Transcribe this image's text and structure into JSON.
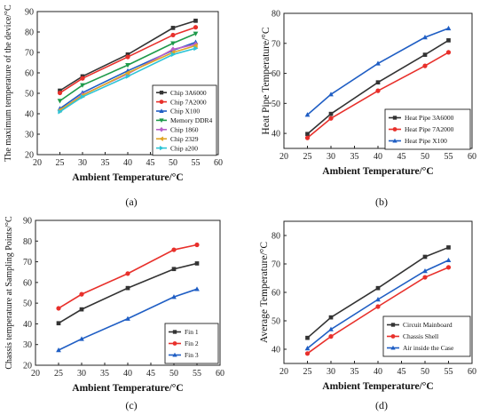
{
  "chart_data": [
    {
      "type": "line",
      "panel_label": "(a)",
      "xlabel": "Ambient Temperature/°C",
      "ylabel": "The maximum temperature of the device/°C",
      "xlim": [
        20,
        60
      ],
      "ylim": [
        20,
        90
      ],
      "xticks": [
        20,
        25,
        30,
        35,
        40,
        45,
        50,
        55,
        60
      ],
      "yticks": [
        20,
        30,
        40,
        50,
        60,
        70,
        80,
        90
      ],
      "grid": false,
      "legend_position": "bottom-right",
      "x": [
        25,
        30,
        40,
        50,
        55
      ],
      "series": [
        {
          "name": "Chip 3A6000",
          "color": "#333333",
          "marker": "square",
          "values": [
            51.3,
            58.3,
            69.0,
            82.0,
            85.5
          ]
        },
        {
          "name": "Chip 7A2000",
          "color": "#e8302b",
          "marker": "circle",
          "values": [
            50.2,
            57.3,
            67.8,
            78.5,
            82.3
          ]
        },
        {
          "name": "Chip X100",
          "color": "#1f5ec4",
          "marker": "triangle-up",
          "values": [
            42.5,
            50.3,
            61.0,
            71.0,
            75.0
          ]
        },
        {
          "name": "Memory DDR4",
          "color": "#1e9a4a",
          "marker": "triangle-down",
          "values": [
            46.3,
            54.0,
            63.8,
            74.5,
            79.2
          ]
        },
        {
          "name": "Chip 1860",
          "color": "#b860c8",
          "marker": "diamond",
          "values": [
            41.5,
            49.3,
            59.5,
            71.5,
            74.0
          ]
        },
        {
          "name": "Chip 2329",
          "color": "#e0a526",
          "marker": "triangle-left",
          "values": [
            41.8,
            49.0,
            60.0,
            70.0,
            73.3
          ]
        },
        {
          "name": "Chip a200",
          "color": "#2ec4d6",
          "marker": "triangle-right",
          "values": [
            41.0,
            48.3,
            58.3,
            69.0,
            72.0
          ]
        }
      ]
    },
    {
      "type": "line",
      "panel_label": "(b)",
      "xlabel": "Ambient Temperature/°C",
      "ylabel": "Heat Pipe Temperature/°C",
      "xlim": [
        20,
        60
      ],
      "ylim": [
        35,
        80
      ],
      "xticks": [
        20,
        25,
        30,
        35,
        40,
        45,
        50,
        55,
        60
      ],
      "yticks": [
        40,
        50,
        60,
        70,
        80
      ],
      "grid": false,
      "legend_position": "bottom-right",
      "x": [
        25,
        30,
        40,
        50,
        55
      ],
      "series": [
        {
          "name": "Heat Pipe 3A6000",
          "color": "#333333",
          "marker": "square",
          "values": [
            39.8,
            46.5,
            57.0,
            66.2,
            71.0
          ]
        },
        {
          "name": "Heat Pipe 7A2000",
          "color": "#e8302b",
          "marker": "circle",
          "values": [
            38.5,
            45.0,
            54.2,
            62.5,
            67.0
          ]
        },
        {
          "name": "Heat Pipe X100",
          "color": "#1f5ec4",
          "marker": "triangle-up",
          "values": [
            46.2,
            53.0,
            63.3,
            72.0,
            75.0
          ]
        }
      ]
    },
    {
      "type": "line",
      "panel_label": "(c)",
      "xlabel": "Ambient Temperature/°C",
      "ylabel": "Chassis temperature at Sampling Points/°C",
      "xlim": [
        20,
        60
      ],
      "ylim": [
        20,
        90
      ],
      "xticks": [
        20,
        25,
        30,
        35,
        40,
        45,
        50,
        55,
        60
      ],
      "yticks": [
        20,
        30,
        40,
        50,
        60,
        70,
        80,
        90
      ],
      "grid": false,
      "legend_position": "bottom-right",
      "x": [
        25,
        30,
        40,
        50,
        55
      ],
      "series": [
        {
          "name": "Fin 1",
          "color": "#333333",
          "marker": "square",
          "values": [
            40.3,
            47.0,
            57.3,
            66.5,
            69.2
          ]
        },
        {
          "name": "Fin 2",
          "color": "#e8302b",
          "marker": "circle",
          "values": [
            47.5,
            54.3,
            64.3,
            75.8,
            78.2
          ]
        },
        {
          "name": "Fin 3",
          "color": "#1f5ec4",
          "marker": "triangle-up",
          "values": [
            27.3,
            32.7,
            42.5,
            53.0,
            56.8
          ]
        }
      ]
    },
    {
      "type": "line",
      "panel_label": "(d)",
      "xlabel": "Ambient Temperature/°C",
      "ylabel": "Average Temperature/°C",
      "xlim": [
        20,
        60
      ],
      "ylim": [
        35,
        85
      ],
      "xticks": [
        20,
        25,
        30,
        35,
        40,
        45,
        50,
        55,
        60
      ],
      "yticks": [
        40,
        50,
        60,
        70,
        80
      ],
      "grid": false,
      "legend_position": "bottom-right",
      "x": [
        25,
        30,
        40,
        50,
        55
      ],
      "series": [
        {
          "name": "Circuit Mainboard",
          "color": "#333333",
          "marker": "square",
          "values": [
            44.0,
            51.2,
            61.5,
            72.5,
            75.8
          ]
        },
        {
          "name": "Chassis Shell",
          "color": "#e8302b",
          "marker": "circle",
          "values": [
            38.5,
            44.5,
            55.0,
            65.3,
            68.8
          ]
        },
        {
          "name": "Air inside the Case",
          "color": "#1f5ec4",
          "marker": "triangle-up",
          "values": [
            40.3,
            47.0,
            57.5,
            67.5,
            71.3
          ]
        }
      ]
    }
  ]
}
